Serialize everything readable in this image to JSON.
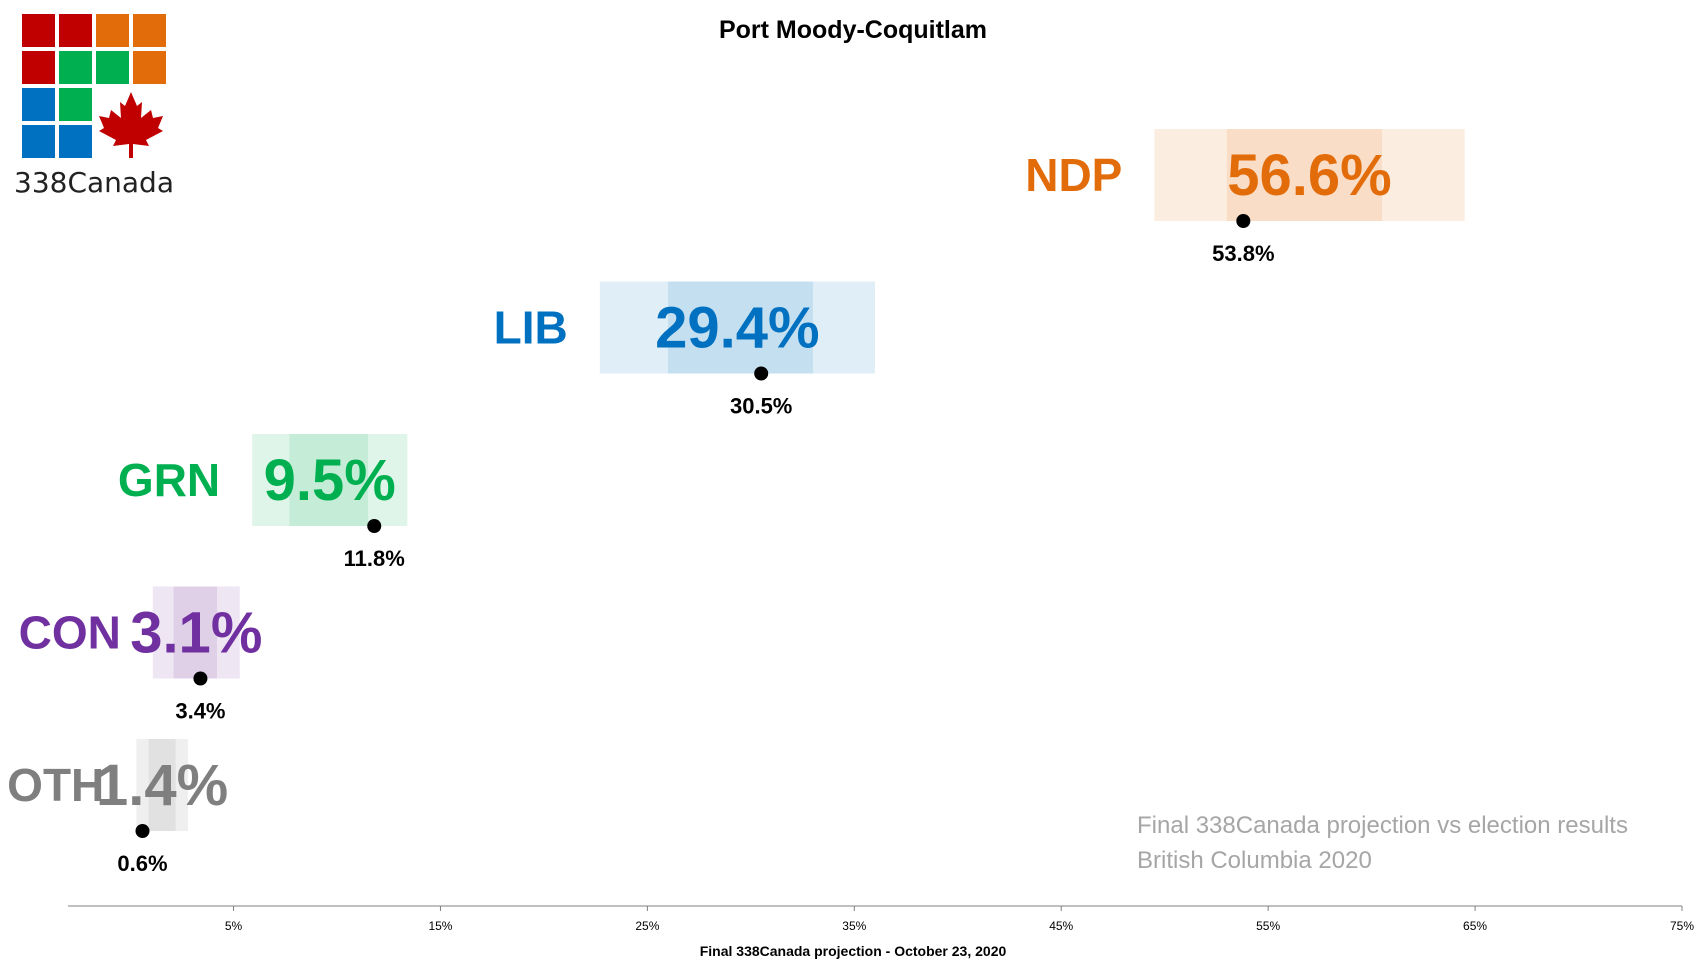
{
  "logo": {
    "text": "338Canada",
    "colors": {
      "red": "#c00000",
      "orange": "#e36c0a",
      "green": "#00b050",
      "blue": "#0070c0",
      "leaf": "#c00000"
    }
  },
  "notes": {
    "line1": "Final 338Canada projection vs election results",
    "line2": "British Columbia 2020"
  },
  "chart_data": {
    "type": "range-dot",
    "title": "Port Moody-Coquitlam",
    "xlabel": "Final 338Canada projection - October 23, 2020",
    "xlim": [
      -3,
      75
    ],
    "xticks": [
      5,
      15,
      25,
      35,
      45,
      55,
      65,
      75
    ],
    "xtick_labels": [
      "5%",
      "15%",
      "25%",
      "35%",
      "45%",
      "55%",
      "65%",
      "75%"
    ],
    "grid": false,
    "parties": [
      {
        "name": "NDP",
        "color": "#e36c0a",
        "projection": 56.6,
        "projection_label": "56.6%",
        "inner_range": [
          53.0,
          60.5
        ],
        "outer_range": [
          49.5,
          64.5
        ],
        "result": 53.8,
        "result_label": "53.8%"
      },
      {
        "name": "LIB",
        "color": "#0070c0",
        "projection": 29.4,
        "projection_label": "29.4%",
        "inner_range": [
          26.0,
          33.0
        ],
        "outer_range": [
          22.7,
          36.0
        ],
        "result": 30.5,
        "result_label": "30.5%"
      },
      {
        "name": "GRN",
        "color": "#00b050",
        "projection": 9.5,
        "projection_label": "9.5%",
        "inner_range": [
          7.7,
          11.5
        ],
        "outer_range": [
          5.9,
          13.4
        ],
        "result": 11.8,
        "result_label": "11.8%"
      },
      {
        "name": "CON",
        "color": "#7030a0",
        "projection": 3.1,
        "projection_label": "3.1%",
        "inner_range": [
          2.1,
          4.2
        ],
        "outer_range": [
          1.1,
          5.3
        ],
        "result": 3.4,
        "result_label": "3.4%"
      },
      {
        "name": "OTH",
        "color": "#7f7f7f",
        "projection": 1.4,
        "projection_label": "1.4%",
        "inner_range": [
          0.9,
          2.2
        ],
        "outer_range": [
          0.3,
          2.8
        ],
        "result": 0.6,
        "result_label": "0.6%"
      }
    ]
  }
}
